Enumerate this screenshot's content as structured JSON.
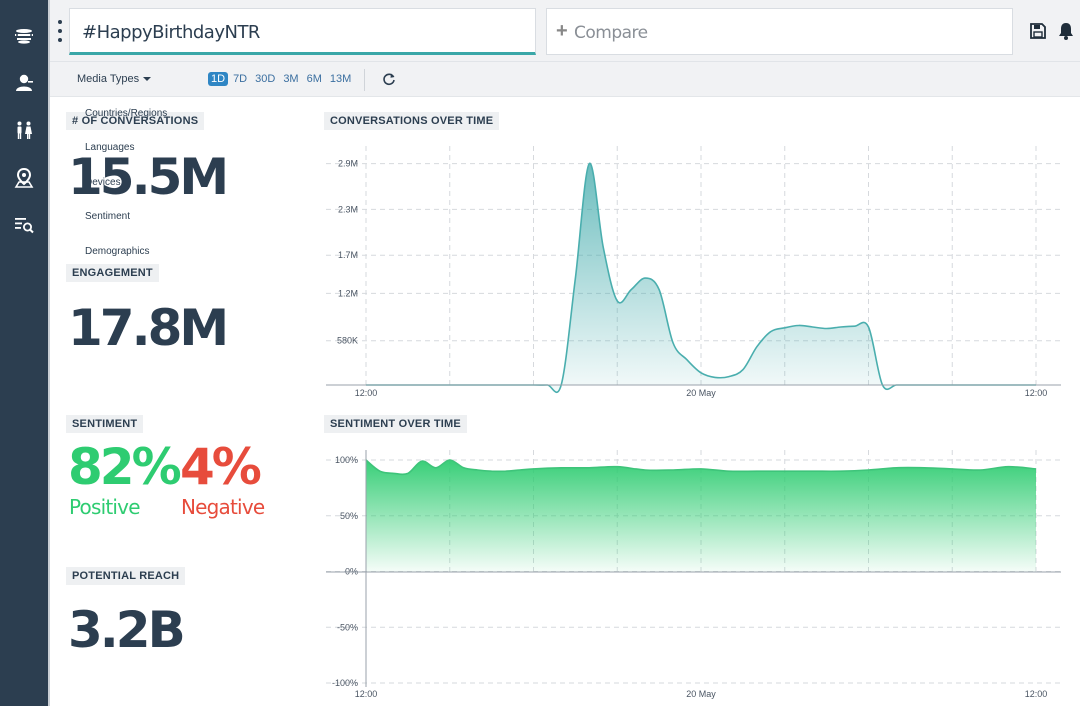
{
  "header": {
    "query": "#HappyBirthdayNTR",
    "compare_label": "Compare",
    "save_icon": "save-icon",
    "bell_icon": "bell-icon"
  },
  "sidebar": {
    "items": [
      {
        "name": "sidebar-item-overview",
        "icon": "layers-icon"
      },
      {
        "name": "sidebar-item-people",
        "icon": "user-icon"
      },
      {
        "name": "sidebar-item-demographics",
        "icon": "male-female-icon"
      },
      {
        "name": "sidebar-item-locations",
        "icon": "map-pin-icon"
      },
      {
        "name": "sidebar-item-search-list",
        "icon": "list-search-icon"
      }
    ]
  },
  "filters": {
    "media_types": "Media Types",
    "ranges": [
      "1D",
      "7D",
      "30D",
      "3M",
      "6M",
      "13M"
    ],
    "active_range": "1D",
    "dropdown_items": [
      "Countries/Regions",
      "Languages",
      "Devices",
      "Sentiment",
      "Demographics"
    ]
  },
  "stats": {
    "conversations_label": "# OF CONVERSATIONS",
    "conversations_value": "15.5M",
    "engagement_label": "ENGAGEMENT",
    "engagement_value": "17.8M",
    "sentiment_label": "SENTIMENT",
    "positive_value": "82%",
    "positive_label": "Positive",
    "negative_value": "4%",
    "negative_label": "Negative",
    "reach_label": "POTENTIAL REACH",
    "reach_value": "3.2B"
  },
  "colors": {
    "sidebar": "#2c3e50",
    "teal": "#4aaeae",
    "green": "#2ecc71",
    "positive": "#2ecc71",
    "negative": "#e74c3c"
  },
  "chart_data": [
    {
      "type": "area",
      "title": "CONVERSATIONS OVER TIME",
      "x_ticks": [
        "12:00",
        "20 May",
        "12:00"
      ],
      "y_ticks": [
        "580K",
        "1.2M",
        "1.7M",
        "2.3M",
        "2.9M"
      ],
      "y_tick_values": [
        580000,
        1200000,
        1700000,
        2300000,
        2900000
      ],
      "ylim": [
        0,
        3000000
      ],
      "x_hours": [
        0,
        2,
        4,
        6,
        8,
        10,
        12,
        13,
        14,
        15,
        16,
        17,
        18,
        19,
        20,
        21,
        22,
        23,
        24,
        25,
        26,
        27,
        28,
        29,
        30,
        31,
        32,
        33,
        34,
        35,
        36,
        37,
        38,
        39,
        40,
        41,
        42,
        43,
        44,
        45,
        46,
        47,
        48
      ],
      "values": [
        0,
        0,
        0,
        0,
        0,
        0,
        0,
        0,
        10000,
        1400000,
        2900000,
        1800000,
        1100000,
        1250000,
        1400000,
        1250000,
        550000,
        330000,
        160000,
        100000,
        110000,
        200000,
        500000,
        700000,
        750000,
        780000,
        760000,
        740000,
        760000,
        770000,
        760000,
        0,
        0,
        0,
        0,
        0,
        0,
        0,
        0,
        0,
        0,
        0,
        0
      ]
    },
    {
      "type": "area",
      "title": "SENTIMENT OVER TIME",
      "x_ticks": [
        "12:00",
        "20 May",
        "12:00"
      ],
      "y_ticks": [
        "100%",
        "50%",
        "0%",
        "-50%",
        "-100%"
      ],
      "y_tick_values": [
        100,
        50,
        0,
        -50,
        -100
      ],
      "ylim": [
        -100,
        100
      ],
      "x_hours": [
        0,
        1,
        2,
        3,
        4,
        5,
        6,
        7,
        8,
        9,
        10,
        11,
        12,
        14,
        16,
        18,
        20,
        22,
        24,
        26,
        28,
        30,
        32,
        34,
        36,
        38,
        40,
        42,
        44,
        46,
        48
      ],
      "values": [
        100,
        90,
        88,
        88,
        99,
        93,
        100,
        93,
        91,
        90,
        90,
        91,
        92,
        93,
        93,
        94,
        91,
        91,
        92,
        90,
        90,
        90,
        90,
        90,
        91,
        93,
        93,
        92,
        91,
        94,
        92
      ]
    }
  ]
}
